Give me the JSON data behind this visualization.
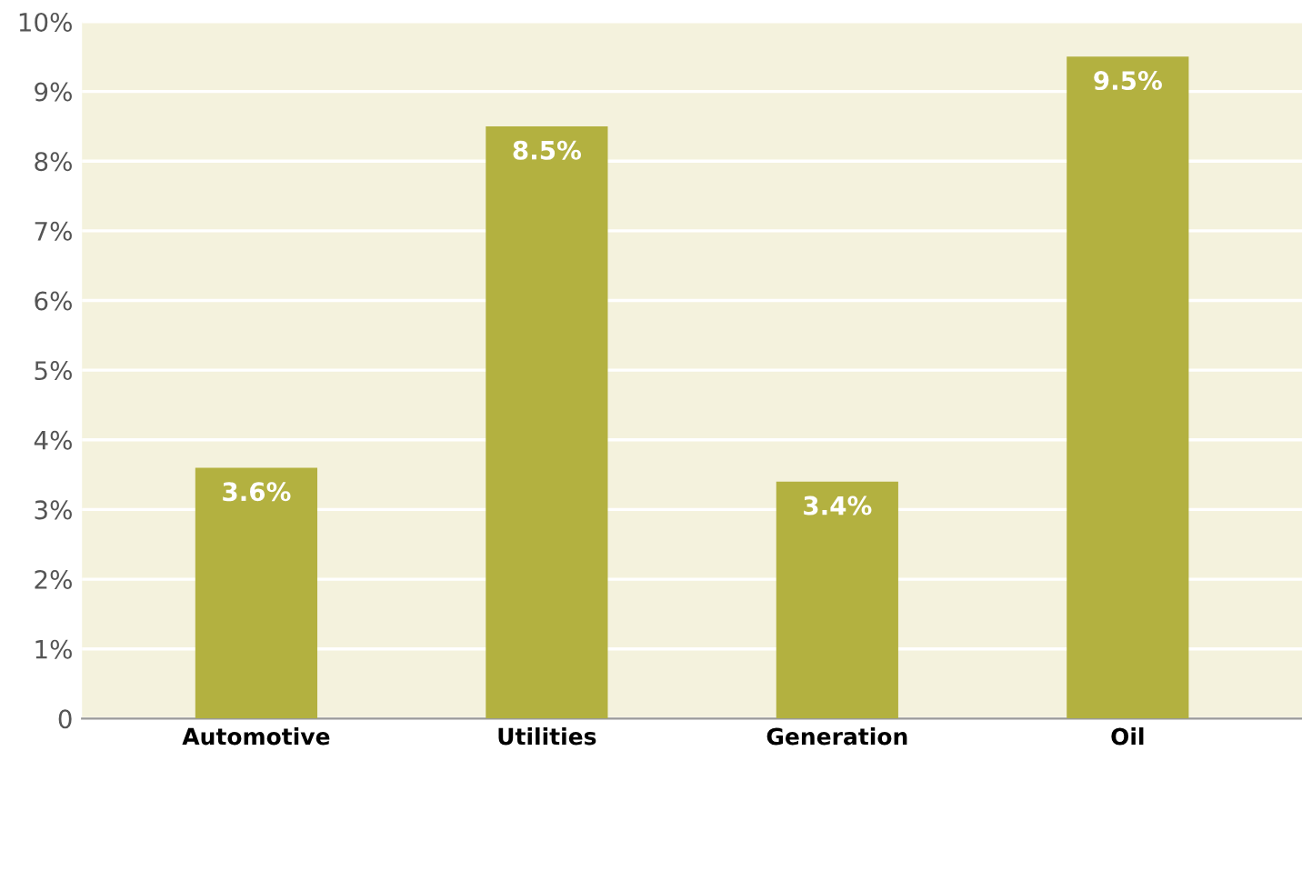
{
  "chart_data": {
    "type": "bar",
    "categories": [
      "Automotive",
      "Utilities",
      "Generation",
      "Oil"
    ],
    "values": [
      3.6,
      8.5,
      3.4,
      9.5
    ],
    "value_labels": [
      "3.6%",
      "8.5%",
      "3.4%",
      "9.5%"
    ],
    "color": "#b3b140",
    "ylim": [
      0,
      10
    ],
    "yticks": [
      {
        "value": 0,
        "label": "0"
      },
      {
        "value": 1,
        "label": "1%"
      },
      {
        "value": 2,
        "label": "2%"
      },
      {
        "value": 3,
        "label": "3%"
      },
      {
        "value": 4,
        "label": "4%"
      },
      {
        "value": 5,
        "label": "5%"
      },
      {
        "value": 6,
        "label": "6%"
      },
      {
        "value": 7,
        "label": "7%"
      },
      {
        "value": 8,
        "label": "8%"
      },
      {
        "value": 9,
        "label": "9%"
      },
      {
        "value": 10,
        "label": "10%"
      }
    ],
    "grid": "y"
  }
}
